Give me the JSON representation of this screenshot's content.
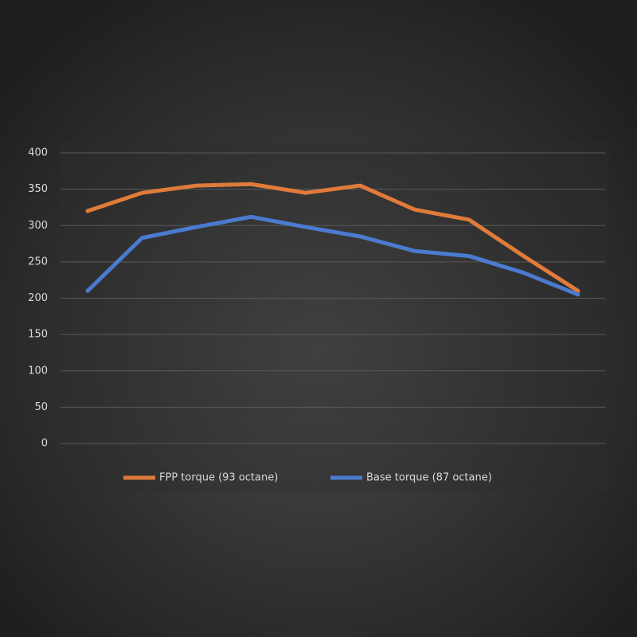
{
  "chart_data": {
    "type": "line",
    "categories": [
      null,
      null,
      null,
      null,
      null,
      null,
      null,
      null,
      null,
      null
    ],
    "series": [
      {
        "name": "FPP torque (93 octane)",
        "color": "#e07b39",
        "values": [
          320,
          345,
          355,
          357,
          345,
          355,
          322,
          308,
          258,
          210
        ]
      },
      {
        "name": "Base torque (87 octane)",
        "color": "#4a7bd0",
        "values": [
          210,
          283,
          298,
          312,
          298,
          285,
          265,
          258,
          235,
          205
        ]
      }
    ],
    "ylim": [
      0,
      400
    ],
    "yticks": [
      0,
      50,
      100,
      150,
      200,
      250,
      300,
      350,
      400
    ],
    "grid": true,
    "legend": "bottom"
  }
}
